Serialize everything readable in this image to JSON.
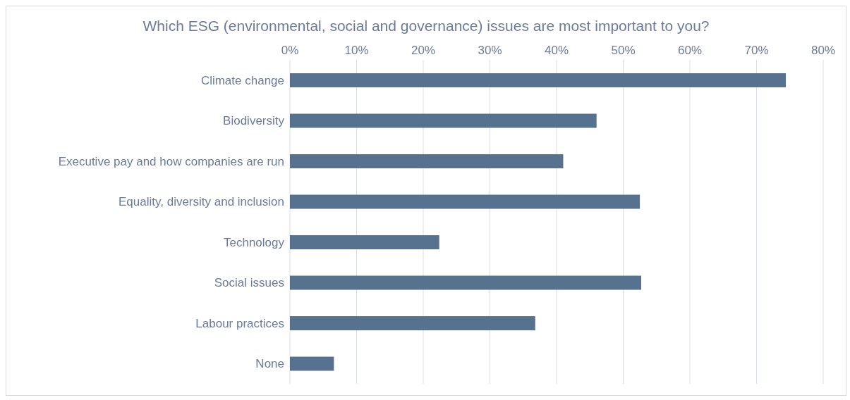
{
  "chart_data": {
    "type": "bar",
    "orientation": "horizontal",
    "title": "Which ESG (environmental, social and governance) issues are most important to you?",
    "categories": [
      "Climate change",
      "Biodiversity",
      "Executive pay and how companies are run",
      "Equality, diversity and inclusion",
      "Technology",
      "Social issues",
      "Labour practices",
      "None"
    ],
    "values": [
      74.4,
      46,
      41,
      52.5,
      22.4,
      52.7,
      36.8,
      6.6
    ],
    "color": "#56728f",
    "xlim": [
      0,
      80
    ],
    "xticks": [
      {
        "value": 0,
        "label": "0%"
      },
      {
        "value": 10,
        "label": "10%"
      },
      {
        "value": 20,
        "label": "20%"
      },
      {
        "value": 30,
        "label": "30%"
      },
      {
        "value": 40,
        "label": "40%"
      },
      {
        "value": 50,
        "label": "50%"
      },
      {
        "value": 60,
        "label": "60%"
      },
      {
        "value": 70,
        "label": "70%"
      },
      {
        "value": 80,
        "label": "80%"
      }
    ],
    "grid": "x",
    "legend": false
  }
}
